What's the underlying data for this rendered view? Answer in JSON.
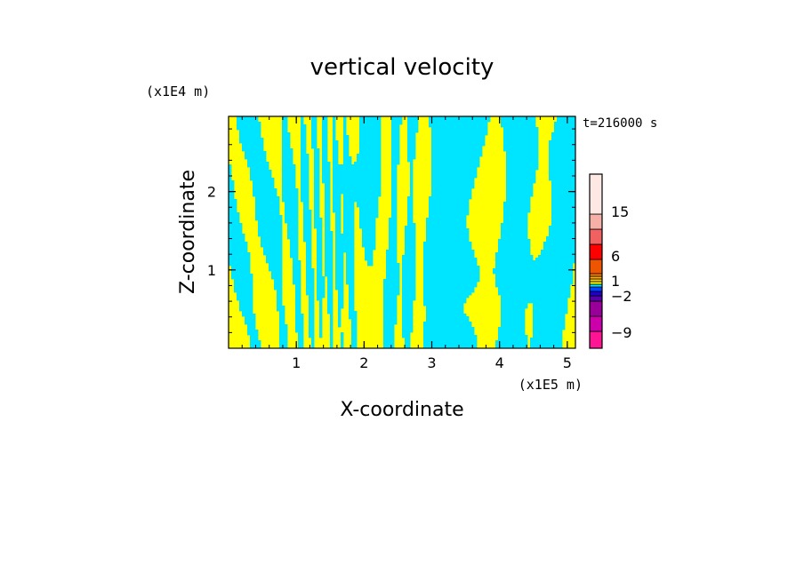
{
  "chart_data": {
    "type": "heatmap",
    "title": "vertical velocity",
    "xlabel": "X-coordinate",
    "ylabel": "Z-coordinate",
    "x_unit": "(x1E5 m)",
    "y_unit": "(x1E4 m)",
    "time_label": "t=216000 s",
    "xlim": [
      0,
      5.12
    ],
    "ylim": [
      0,
      2.96
    ],
    "x_ticks": [
      "1",
      "2",
      "3",
      "4",
      "5"
    ],
    "y_ticks": [
      "1",
      "2"
    ],
    "colorbar": {
      "tick_labels": [
        "15",
        "6",
        "1",
        "−2",
        "−9"
      ],
      "levels": [
        {
          "color": "#ff1493"
        },
        {
          "color": "#cc00aa"
        },
        {
          "color": "#990099"
        },
        {
          "color": "#5500aa"
        },
        {
          "color": "#2200cc"
        },
        {
          "color": "#0044ff"
        },
        {
          "color": "#00e5ff"
        },
        {
          "color": "#ffff00"
        },
        {
          "color": "#ffcc00"
        },
        {
          "color": "#ffaa00"
        },
        {
          "color": "#ff8000"
        },
        {
          "color": "#ee5500"
        },
        {
          "color": "#ff0000"
        },
        {
          "color": "#f06262"
        },
        {
          "color": "#f5b0a8"
        },
        {
          "color": "#fde8e4"
        }
      ]
    },
    "field_colors": {
      "positive": "#ffff00",
      "negative": "#00e5ff"
    }
  }
}
